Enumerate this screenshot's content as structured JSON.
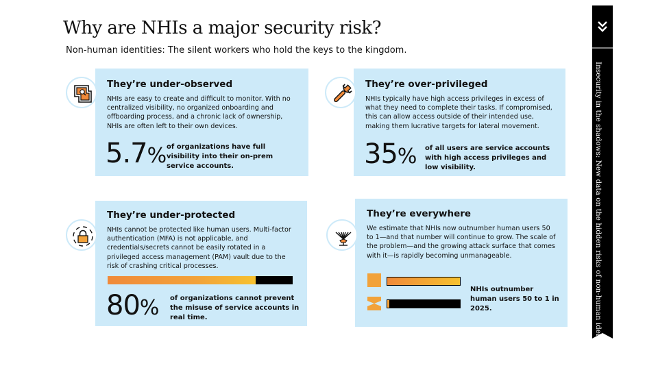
{
  "header": {
    "title": "Why are NHIs a major security risk?",
    "subtitle": "Non-human identities: The silent workers who hold the keys to the kingdom."
  },
  "cards": {
    "under_observed": {
      "title": "They’re under-observed",
      "body": "NHIs are easy to create and difficult to monitor. With no centralized visibility, no organized onboarding and offboarding process, and a chronic lack of ownership, NHIs are often left to their own devices.",
      "stat_value": "5.7",
      "stat_unit": "%",
      "stat_caption": "of organizations have full visibility into their on-prem service accounts.",
      "icon": "monitor-frame-icon"
    },
    "over_privileged": {
      "title": "They’re over-privileged",
      "body": "NHIs typically have high access privileges in excess of what they need to complete their tasks. If compromised, this can allow access outside of their intended use, making them lucrative targets for lateral movement.",
      "stat_value": "35",
      "stat_unit": "%",
      "stat_caption": "of all users are service accounts with high access privileges and low visibility.",
      "icon": "wrench-icon"
    },
    "under_protected": {
      "title": "They’re under-protected",
      "body": "NHIs cannot be protected like human users. Multi-factor authentication (MFA) is not applicable, and credentials/secrets cannot be easily rotated in a privileged access management (PAM) vault due to the risk of crashing critical processes.",
      "stat_value": "80",
      "stat_unit": "%",
      "stat_caption": "of organizations cannot prevent the misuse of service accounts in real time.",
      "bar_fraction": 0.8,
      "icon": "padlock-icon"
    },
    "everywhere": {
      "title": "They’re everywhere",
      "body": "We estimate that NHIs now outnumber human users 50 to 1—and that number will continue to grow. The scale of the problem—and the growing attack surface that comes with it—is rapidly becoming unmanageable.",
      "stat_caption": "NHIs outnumber human users 50 to 1 in 2025.",
      "nhi_ratio": 50,
      "human_ratio": 1,
      "icon": "network-antenna-icon"
    }
  },
  "sidebar": {
    "text": "Insecurity in the shadows: New data on the hidden risks of non-human identities",
    "icon": "double-chevron-down-icon"
  },
  "colors": {
    "card_bg": "#cdeaf9",
    "accent_orange": "#f08a3a",
    "accent_yellow": "#f6c12f",
    "banner": "#000000"
  }
}
